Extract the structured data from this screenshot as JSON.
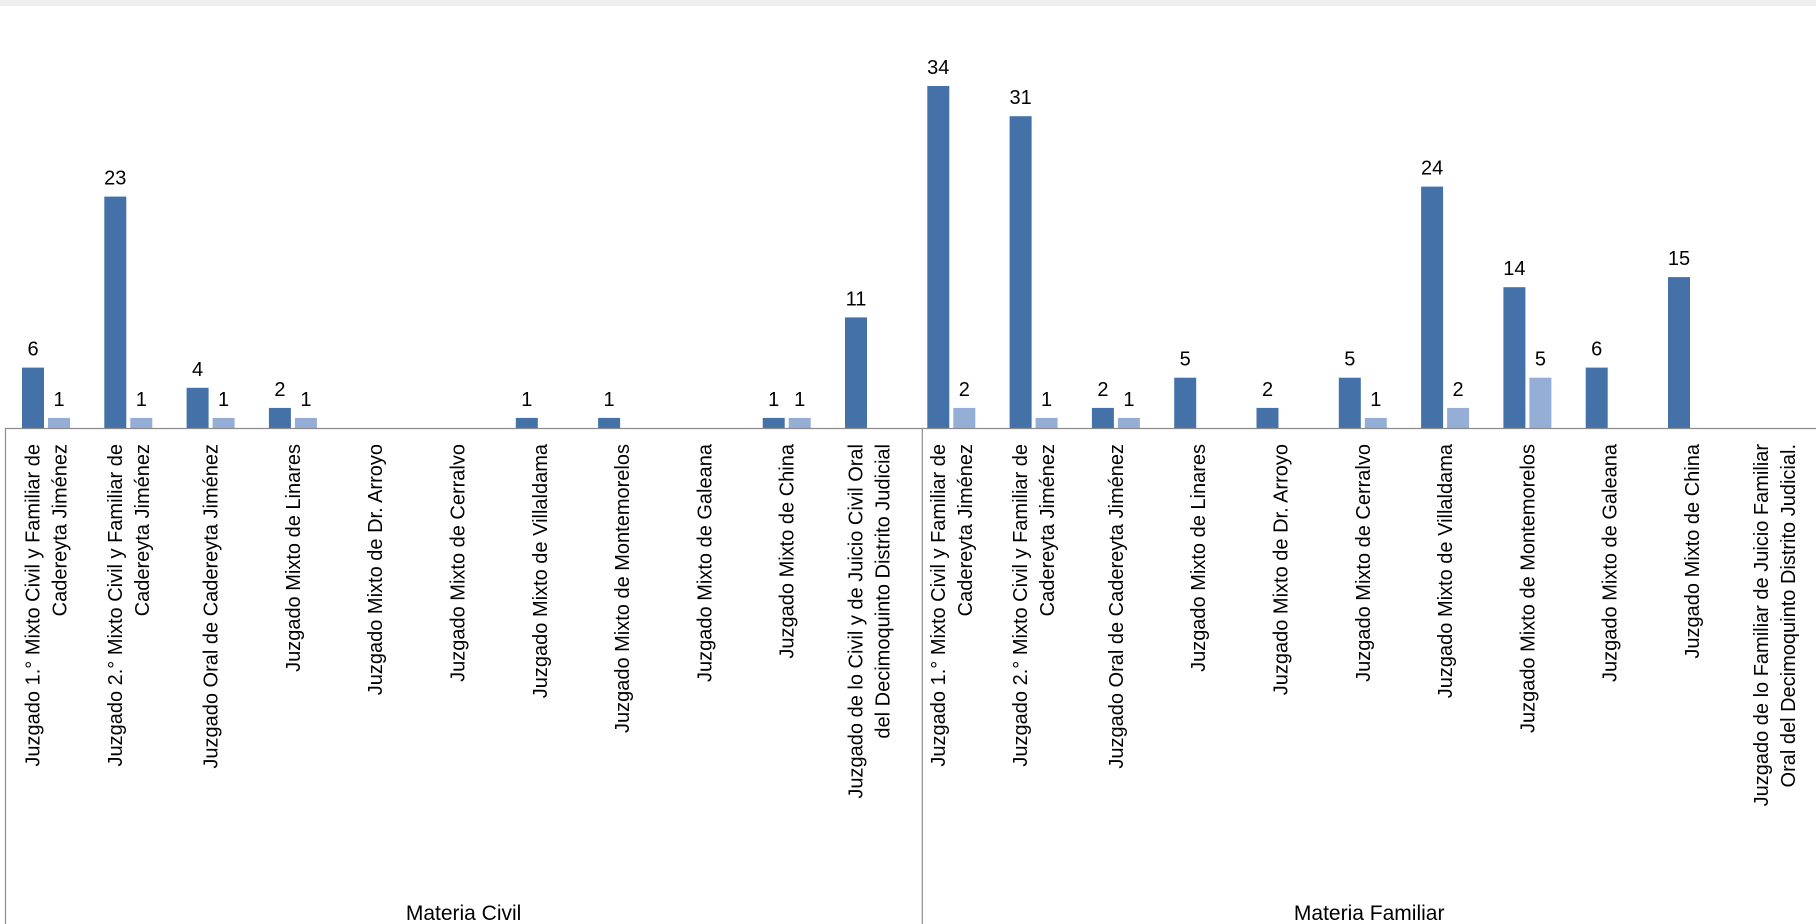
{
  "chart_data": {
    "type": "bar",
    "groups": [
      {
        "name": "Materia Civil",
        "categories": [
          [
            "Juzgado 1.° Mixto Civil y Familiar de",
            "Cadereyta Jiménez"
          ],
          [
            "Juzgado 2.° Mixto Civil y Familiar de",
            "Cadereyta Jiménez"
          ],
          [
            "Juzgado Oral de Cadereyta Jiménez"
          ],
          [
            "Juzgado Mixto de Linares"
          ],
          [
            "Juzgado Mixto de Dr. Arroyo"
          ],
          [
            "Juzgado Mixto de Cerralvo"
          ],
          [
            "Juzgado Mixto de Villaldama"
          ],
          [
            "Juzgado Mixto de Montemorelos"
          ],
          [
            "Juzgado Mixto de Galeana"
          ],
          [
            "Juzgado Mixto de China"
          ],
          [
            "Juzgado de lo Civil y de Juicio Civil Oral",
            "del Decimoquinto Distrito Judicial"
          ]
        ],
        "series": [
          {
            "values": [
              6,
              23,
              4,
              2,
              null,
              null,
              1,
              1,
              null,
              1,
              11
            ]
          },
          {
            "values": [
              1,
              1,
              1,
              1,
              null,
              null,
              null,
              null,
              null,
              1,
              null
            ]
          }
        ]
      },
      {
        "name": "Materia Familiar",
        "categories": [
          [
            "Juzgado 1.° Mixto Civil y Familiar de",
            "Cadereyta Jiménez"
          ],
          [
            "Juzgado 2.° Mixto Civil y Familiar de",
            "Cadereyta Jiménez"
          ],
          [
            "Juzgado Oral de Cadereyta Jiménez"
          ],
          [
            "Juzgado Mixto de Linares"
          ],
          [
            "Juzgado Mixto de Dr. Arroyo"
          ],
          [
            "Juzgado Mixto de Cerralvo"
          ],
          [
            "Juzgado Mixto de Villaldama"
          ],
          [
            "Juzgado Mixto de Montemorelos"
          ],
          [
            "Juzgado Mixto de Galeana"
          ],
          [
            "Juzgado Mixto de China"
          ],
          [
            "Juzgado de lo Familiar de Juicio Familiar",
            "Oral del Decimoquinto Distrito Judicial."
          ]
        ],
        "series": [
          {
            "values": [
              34,
              31,
              2,
              5,
              2,
              5,
              24,
              14,
              6,
              15,
              null
            ]
          },
          {
            "values": [
              2,
              1,
              1,
              null,
              null,
              1,
              2,
              5,
              null,
              null,
              null
            ]
          }
        ]
      }
    ],
    "series_colors": [
      "#4472a8",
      "#95aed6"
    ],
    "ylim": [
      0,
      34
    ],
    "grid": false,
    "legend": "none",
    "data_labels": true
  }
}
